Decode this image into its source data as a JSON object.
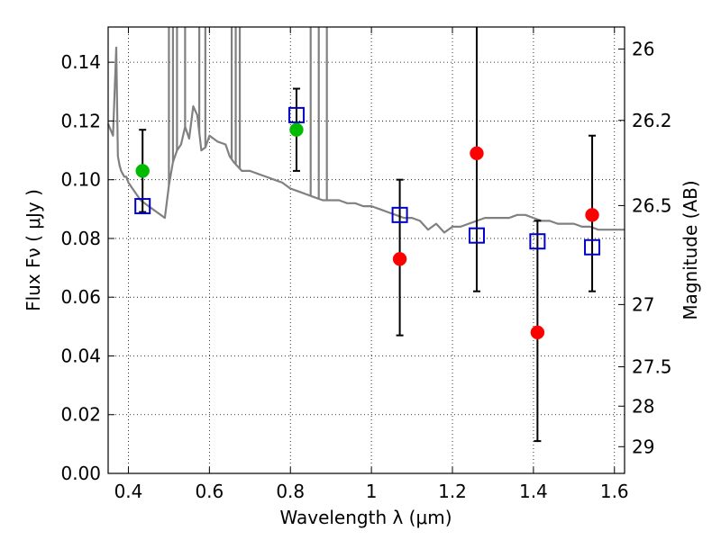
{
  "chart_data": {
    "type": "scatter",
    "xlabel": "Wavelength  λ (μm)",
    "ylabel": "Flux  Fν (  μJy )",
    "y2label": "Magnitude (AB)",
    "xlim": [
      0.35,
      1.625
    ],
    "ylim": [
      0.0,
      0.152
    ],
    "grid": true,
    "x_ticks": [
      {
        "value": 0.4,
        "label": "0.4"
      },
      {
        "value": 0.6,
        "label": "0.6"
      },
      {
        "value": 0.8,
        "label": "0.8"
      },
      {
        "value": 1.0,
        "label": "1"
      },
      {
        "value": 1.2,
        "label": "1.2"
      },
      {
        "value": 1.4,
        "label": "1.4"
      },
      {
        "value": 1.6,
        "label": "1.6"
      }
    ],
    "y_ticks": [
      {
        "value": 0.0,
        "label": "0.00"
      },
      {
        "value": 0.02,
        "label": "0.02"
      },
      {
        "value": 0.04,
        "label": "0.04"
      },
      {
        "value": 0.06,
        "label": "0.06"
      },
      {
        "value": 0.08,
        "label": "0.08"
      },
      {
        "value": 0.1,
        "label": "0.10"
      },
      {
        "value": 0.12,
        "label": "0.12"
      },
      {
        "value": 0.14,
        "label": "0.14"
      }
    ],
    "y2_ticks": [
      {
        "label": "26",
        "flux": 0.1445
      },
      {
        "label": "26.2",
        "flux": 0.1202
      },
      {
        "label": "26.5",
        "flux": 0.0912
      },
      {
        "label": "27",
        "flux": 0.0575
      },
      {
        "label": "27.5",
        "flux": 0.0363
      },
      {
        "label": "28",
        "flux": 0.0229
      },
      {
        "label": "29",
        "flux": 0.0091
      }
    ],
    "series": [
      {
        "kind": "model_spectrum",
        "color": "#808080",
        "x": [
          0.35,
          0.362,
          0.37,
          0.374,
          0.378,
          0.382,
          0.386,
          0.39,
          0.395,
          0.4,
          0.41,
          0.42,
          0.43,
          0.44,
          0.45,
          0.46,
          0.47,
          0.48,
          0.49,
          0.5,
          0.51,
          0.52,
          0.53,
          0.54,
          0.55,
          0.56,
          0.57,
          0.58,
          0.59,
          0.6,
          0.62,
          0.64,
          0.65,
          0.66,
          0.68,
          0.7,
          0.72,
          0.74,
          0.76,
          0.78,
          0.8,
          0.82,
          0.84,
          0.86,
          0.88,
          0.9,
          0.92,
          0.94,
          0.96,
          0.98,
          1.0,
          1.02,
          1.04,
          1.06,
          1.08,
          1.1,
          1.12,
          1.14,
          1.16,
          1.18,
          1.2,
          1.22,
          1.24,
          1.26,
          1.28,
          1.3,
          1.32,
          1.34,
          1.36,
          1.38,
          1.4,
          1.42,
          1.44,
          1.46,
          1.48,
          1.5,
          1.52,
          1.54,
          1.56,
          1.58,
          1.6,
          1.625
        ],
        "y": [
          0.119,
          0.115,
          0.145,
          0.108,
          0.105,
          0.103,
          0.102,
          0.101,
          0.101,
          0.099,
          0.097,
          0.095,
          0.093,
          0.092,
          0.091,
          0.09,
          0.089,
          0.088,
          0.087,
          0.098,
          0.106,
          0.11,
          0.112,
          0.118,
          0.114,
          0.125,
          0.122,
          0.11,
          0.111,
          0.115,
          0.113,
          0.112,
          0.108,
          0.106,
          0.103,
          0.103,
          0.102,
          0.101,
          0.1,
          0.099,
          0.097,
          0.096,
          0.095,
          0.094,
          0.093,
          0.093,
          0.093,
          0.092,
          0.092,
          0.091,
          0.091,
          0.09,
          0.089,
          0.088,
          0.087,
          0.087,
          0.086,
          0.083,
          0.085,
          0.082,
          0.084,
          0.084,
          0.085,
          0.086,
          0.087,
          0.087,
          0.087,
          0.087,
          0.088,
          0.088,
          0.087,
          0.086,
          0.086,
          0.085,
          0.085,
          0.085,
          0.084,
          0.084,
          0.083,
          0.083,
          0.083,
          0.083
        ],
        "spikes": [
          [
            0.5,
            0.152
          ],
          [
            0.51,
            0.152
          ],
          [
            0.52,
            0.152
          ],
          [
            0.54,
            0.152
          ],
          [
            0.575,
            0.152
          ],
          [
            0.59,
            0.152
          ],
          [
            0.655,
            0.152
          ],
          [
            0.665,
            0.152
          ],
          [
            0.675,
            0.152
          ],
          [
            0.85,
            0.152
          ],
          [
            0.87,
            0.152
          ],
          [
            0.89,
            0.152
          ]
        ]
      },
      {
        "kind": "observed_detection",
        "color": "#00bb00",
        "x": [
          0.435,
          0.815
        ],
        "y": [
          0.103,
          0.117
        ]
      },
      {
        "kind": "observed_nondetection",
        "color": "#ff0000",
        "x": [
          1.07,
          1.26,
          1.41,
          1.545
        ],
        "y": [
          0.073,
          0.109,
          0.048,
          0.088
        ]
      },
      {
        "kind": "model_photometry",
        "color": "#0000cc",
        "x": [
          0.435,
          0.815,
          1.07,
          1.26,
          1.41,
          1.545
        ],
        "y": [
          0.091,
          0.122,
          0.088,
          0.081,
          0.079,
          0.077
        ]
      }
    ],
    "error_bars": [
      {
        "x": 0.435,
        "low": 0.089,
        "high": 0.117
      },
      {
        "x": 0.815,
        "low": 0.103,
        "high": 0.131
      },
      {
        "x": 1.07,
        "low": 0.047,
        "high": 0.1
      },
      {
        "x": 1.26,
        "low": 0.062,
        "high": 0.152
      },
      {
        "x": 1.41,
        "low": 0.011,
        "high": 0.086
      },
      {
        "x": 1.545,
        "low": 0.062,
        "high": 0.115
      }
    ]
  }
}
